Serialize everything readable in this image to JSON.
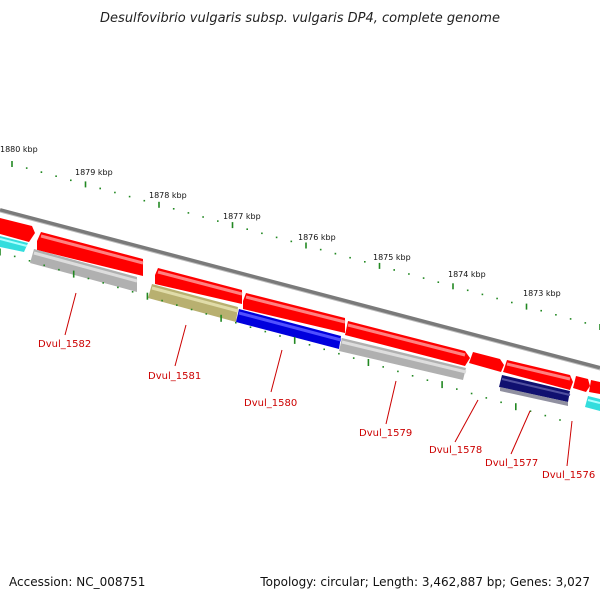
{
  "title": "Desulfovibrio vulgaris subsp. vulgaris DP4, complete genome",
  "footer": {
    "accession": "Accession: NC_008751",
    "topology": "Topology: circular; Length: 3,462,887 bp; Genes: 3,027"
  },
  "colors": {
    "backbone": "#888888",
    "cds_forward": "#ff0000",
    "cds_reverse_grey": "#b0b0b0",
    "cds_reverse_blue": "#0000dd",
    "cds_reverse_olive": "#b8b070",
    "cds_reverse_navy": "#101070",
    "cds_cyan": "#33dddd",
    "tick": "#228822",
    "label_line": "#cc0000"
  },
  "ticks": [
    {
      "label": "1880 kbp"
    },
    {
      "label": "1879 kbp"
    },
    {
      "label": "1878 kbp"
    },
    {
      "label": "1877 kbp"
    },
    {
      "label": "1876 kbp"
    },
    {
      "label": "1875 kbp"
    },
    {
      "label": "1874 kbp"
    },
    {
      "label": "1873 kbp"
    }
  ],
  "gene_labels": [
    {
      "name": "Dvul_1582"
    },
    {
      "name": "Dvul_1581"
    },
    {
      "name": "Dvul_1580"
    },
    {
      "name": "Dvul_1579"
    },
    {
      "name": "Dvul_1578"
    },
    {
      "name": "Dvul_1577"
    },
    {
      "name": "Dvul_1576"
    }
  ]
}
